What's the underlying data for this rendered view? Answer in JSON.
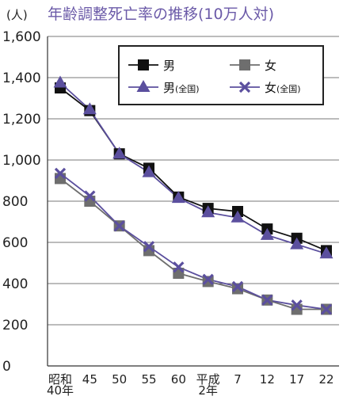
{
  "chart_data": {
    "type": "line",
    "title": "年齢調整死亡率の推移(10万人対)",
    "unit": "(人)",
    "ylim": [
      0,
      1600
    ],
    "yticks": [
      "0",
      "200",
      "400",
      "600",
      "800",
      "1,000",
      "1,200",
      "1,400",
      "1,600"
    ],
    "grid": true,
    "legend_position": "top-right",
    "categories": [
      "昭和40年",
      "45",
      "50",
      "55",
      "60",
      "平成2年",
      "7",
      "12",
      "17",
      "22"
    ],
    "category_labels": [
      [
        "昭和",
        "40年"
      ],
      [
        "45"
      ],
      [
        "50"
      ],
      [
        "55"
      ],
      [
        "60"
      ],
      [
        "平成",
        "2年"
      ],
      [
        "7"
      ],
      [
        "12"
      ],
      [
        "17"
      ],
      [
        "22"
      ]
    ],
    "series": [
      {
        "name": "男",
        "marker": "square",
        "color": "#111111",
        "values": [
          1350,
          1240,
          1030,
          960,
          820,
          765,
          750,
          665,
          620,
          560
        ]
      },
      {
        "name": "女",
        "marker": "square",
        "color": "#6e6e6e",
        "values": [
          910,
          800,
          680,
          560,
          450,
          410,
          375,
          320,
          275,
          275
        ]
      },
      {
        "name": "男",
        "name_suffix": "(全国)",
        "marker": "triangle",
        "color": "#5b4f9e",
        "values": [
          1375,
          1245,
          1030,
          940,
          815,
          745,
          720,
          635,
          590,
          545
        ]
      },
      {
        "name": "女",
        "name_suffix": "(全国)",
        "marker": "x",
        "color": "#5b4f9e",
        "values": [
          935,
          825,
          680,
          580,
          480,
          420,
          385,
          320,
          295,
          275
        ]
      }
    ]
  }
}
